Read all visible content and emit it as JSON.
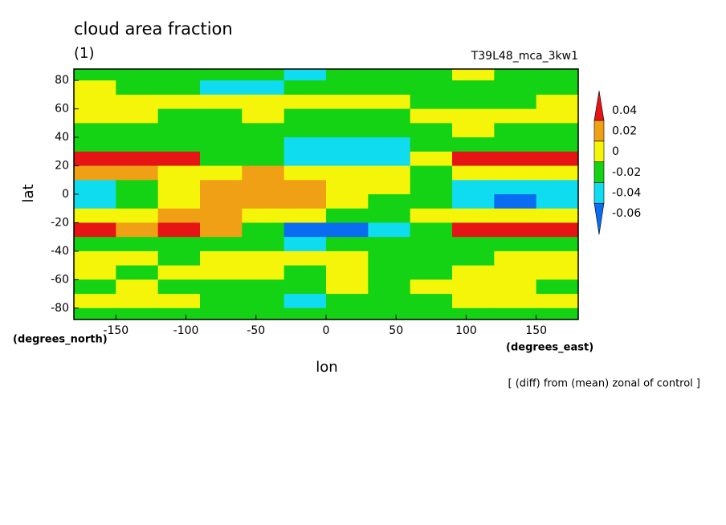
{
  "chart_data": {
    "type": "contour",
    "title": "cloud area fraction",
    "subtitle": "(1)",
    "run_label": "T39L48_mca_3kw1",
    "note": "[ (diff) from (mean) zonal of control ]",
    "x_label": "lon",
    "y_label": "lat",
    "x_unit": "(degrees_east)",
    "y_unit": "(degrees_north)",
    "xlim": [
      -180,
      180
    ],
    "ylim": [
      -88,
      88
    ],
    "xticks": [
      -150,
      -100,
      -50,
      0,
      50,
      100,
      150
    ],
    "yticks": [
      -80,
      -60,
      -40,
      -20,
      0,
      20,
      40,
      60,
      80
    ],
    "levels": [
      -0.06,
      -0.04,
      -0.02,
      0,
      0.02,
      0.04
    ],
    "colors": [
      "#0a6cf0",
      "#10dcf0",
      "#14d214",
      "#f5f50a",
      "#f0a014",
      "#e61414"
    ],
    "x": [
      -165,
      -135,
      -105,
      -75,
      -45,
      -15,
      15,
      45,
      75,
      105,
      135,
      165
    ],
    "y": [
      85,
      75,
      65,
      55,
      45,
      35,
      25,
      15,
      5,
      -5,
      -15,
      -25,
      -35,
      -45,
      -55,
      -65,
      -75,
      -85
    ],
    "z": [
      [
        -0.01,
        -0.01,
        -0.01,
        -0.01,
        -0.01,
        -0.03,
        -0.01,
        -0.01,
        -0.01,
        0.01,
        -0.01,
        -0.01
      ],
      [
        0.01,
        -0.01,
        -0.01,
        -0.03,
        -0.03,
        -0.01,
        -0.01,
        -0.01,
        -0.01,
        -0.01,
        -0.01,
        -0.01
      ],
      [
        0.01,
        0.01,
        0.01,
        0.01,
        0.01,
        0.01,
        0.01,
        0.01,
        -0.01,
        -0.01,
        -0.01,
        0.01
      ],
      [
        0.01,
        0.01,
        -0.01,
        -0.01,
        0.01,
        -0.01,
        -0.01,
        -0.01,
        0.01,
        0.01,
        0.01,
        0.01
      ],
      [
        -0.01,
        -0.01,
        -0.01,
        -0.01,
        -0.01,
        -0.01,
        -0.01,
        -0.01,
        -0.01,
        0.01,
        -0.01,
        -0.01
      ],
      [
        -0.01,
        -0.01,
        -0.01,
        -0.01,
        -0.01,
        -0.03,
        -0.03,
        -0.03,
        -0.01,
        -0.01,
        -0.01,
        -0.01
      ],
      [
        0.05,
        0.05,
        0.05,
        -0.01,
        -0.01,
        -0.03,
        -0.03,
        -0.03,
        0.01,
        0.05,
        0.05,
        0.05
      ],
      [
        0.03,
        0.03,
        0.01,
        0.01,
        0.03,
        0.01,
        0.01,
        0.01,
        -0.01,
        0.01,
        0.01,
        0.01
      ],
      [
        -0.03,
        -0.01,
        0.01,
        0.03,
        0.03,
        0.03,
        0.01,
        0.01,
        -0.01,
        -0.03,
        -0.03,
        -0.03
      ],
      [
        -0.03,
        -0.01,
        0.01,
        0.03,
        0.03,
        0.03,
        0.01,
        -0.01,
        -0.01,
        -0.03,
        -0.05,
        -0.03
      ],
      [
        0.01,
        0.01,
        0.03,
        0.03,
        0.01,
        0.01,
        -0.01,
        -0.01,
        0.01,
        0.01,
        0.01,
        0.01
      ],
      [
        0.05,
        0.03,
        0.05,
        0.03,
        -0.01,
        -0.05,
        -0.05,
        -0.03,
        -0.01,
        0.05,
        0.05,
        0.05
      ],
      [
        -0.01,
        -0.01,
        -0.01,
        -0.01,
        -0.01,
        -0.03,
        -0.01,
        -0.01,
        -0.01,
        -0.01,
        -0.01,
        -0.01
      ],
      [
        0.01,
        0.01,
        -0.01,
        0.01,
        0.01,
        0.01,
        0.01,
        -0.01,
        -0.01,
        -0.01,
        0.01,
        0.01
      ],
      [
        0.01,
        -0.01,
        0.01,
        0.01,
        0.01,
        -0.01,
        0.01,
        -0.01,
        -0.01,
        0.01,
        0.01,
        0.01
      ],
      [
        -0.01,
        0.01,
        -0.01,
        -0.01,
        -0.01,
        -0.01,
        0.01,
        -0.01,
        0.01,
        0.01,
        0.01,
        -0.01
      ],
      [
        0.01,
        0.01,
        0.01,
        -0.01,
        -0.01,
        -0.03,
        -0.01,
        -0.01,
        -0.01,
        0.01,
        0.01,
        0.01
      ],
      [
        -0.01,
        -0.01,
        -0.01,
        -0.01,
        -0.01,
        -0.01,
        -0.01,
        -0.01,
        -0.01,
        -0.01,
        -0.01,
        -0.01
      ]
    ]
  }
}
